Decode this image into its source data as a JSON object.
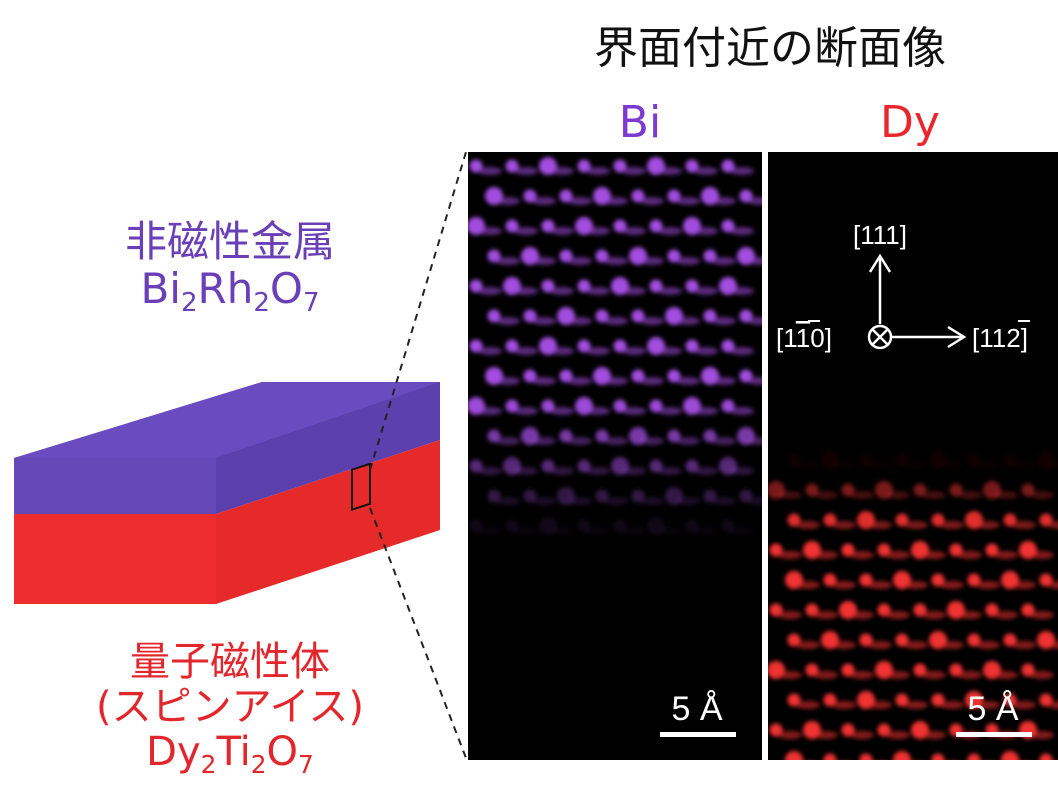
{
  "title": "界面付近の断面像",
  "panels": {
    "bi": {
      "label": "Bi",
      "color": "#a24de0",
      "scale_bar": "5 Å"
    },
    "dy": {
      "label": "Dy",
      "color": "#f03030",
      "scale_bar": "5 Å"
    }
  },
  "axes": {
    "vertical": "[111]",
    "left": "[1",
    "left_bar": "1",
    "left_end": "0]",
    "right": "[11",
    "right_bar": "2",
    "right_end": "]"
  },
  "top_material": {
    "name": "非磁性金属",
    "formula": [
      {
        "t": "Bi",
        "s": "2"
      },
      {
        "t": "Rh",
        "s": "2"
      },
      {
        "t": "O",
        "s": "7"
      }
    ]
  },
  "bottom_material": {
    "name": "量子磁性体",
    "desc": "(スピンアイス)",
    "formula": [
      {
        "t": "Dy",
        "s": "2"
      },
      {
        "t": "Ti",
        "s": "2"
      },
      {
        "t": "O",
        "s": "7"
      }
    ]
  },
  "colors": {
    "top_layer_face": "#6648b8",
    "top_layer_top": "#5a3aa8",
    "bottom_layer": "#ee2e2e",
    "image_bg": "#000000"
  }
}
